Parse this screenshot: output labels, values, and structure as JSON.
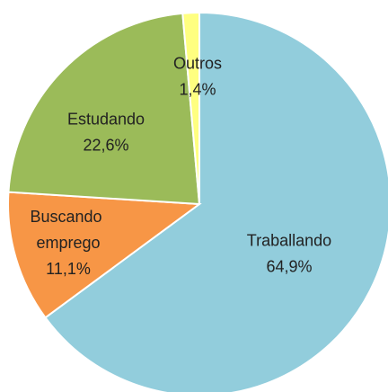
{
  "chart_data": {
    "type": "pie",
    "categories": [
      "Traballando",
      "Buscando emprego",
      "Estudando",
      "Outros"
    ],
    "values": [
      64.9,
      11.1,
      22.6,
      1.4
    ],
    "value_labels": [
      "64,9%",
      "11,1%",
      "22,6%",
      "1,4%"
    ],
    "colors": [
      "#92cddc",
      "#f79646",
      "#9bbb59",
      "#ffff80"
    ]
  }
}
